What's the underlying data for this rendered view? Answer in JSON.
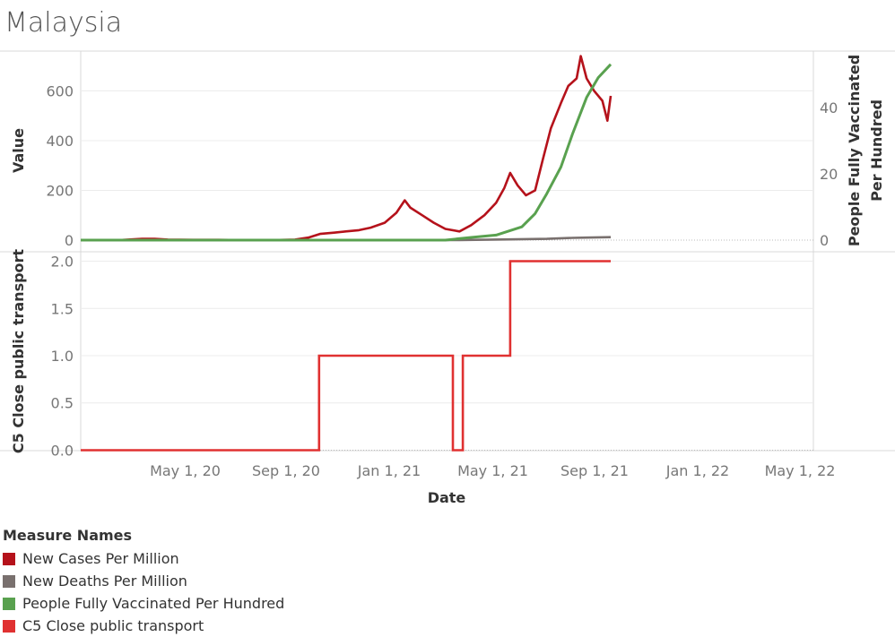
{
  "title": "Malaysia",
  "chart_data": {
    "type": "line",
    "x_tick_labels": [
      "May 1, 20",
      "Sep 1, 20",
      "Jan 1, 21",
      "May 1, 21",
      "Sep 1, 21",
      "Jan 1, 22",
      "May 1, 22"
    ],
    "x_axis_label": "Date",
    "x_range": [
      "2020-01-01",
      "2022-06-01"
    ],
    "top_panel": {
      "left_axis_label": "Value",
      "left_ylim": [
        0,
        760
      ],
      "left_ticks": [
        "0",
        "200",
        "400",
        "600"
      ],
      "right_axis_label_line1": "People Fully Vaccinated",
      "right_axis_label_line2": "Per Hundred",
      "right_ylim": [
        0,
        57
      ],
      "right_ticks": [
        "0",
        "20",
        "40"
      ],
      "series": [
        {
          "name": "New Cases Per Million",
          "axis": "left",
          "color": "#b5121b",
          "points": [
            [
              "2020-01-01",
              0
            ],
            [
              "2020-02-15",
              0
            ],
            [
              "2020-03-15",
              5
            ],
            [
              "2020-03-30",
              5
            ],
            [
              "2020-04-15",
              2
            ],
            [
              "2020-05-15",
              1
            ],
            [
              "2020-06-15",
              1
            ],
            [
              "2020-08-15",
              0
            ],
            [
              "2020-09-15",
              2
            ],
            [
              "2020-10-01",
              10
            ],
            [
              "2020-10-15",
              25
            ],
            [
              "2020-11-01",
              30
            ],
            [
              "2020-11-15",
              35
            ],
            [
              "2020-12-01",
              40
            ],
            [
              "2020-12-15",
              50
            ],
            [
              "2021-01-01",
              70
            ],
            [
              "2021-01-15",
              110
            ],
            [
              "2021-01-25",
              160
            ],
            [
              "2021-02-01",
              130
            ],
            [
              "2021-02-15",
              100
            ],
            [
              "2021-03-01",
              70
            ],
            [
              "2021-03-15",
              45
            ],
            [
              "2021-04-01",
              35
            ],
            [
              "2021-04-15",
              60
            ],
            [
              "2021-05-01",
              100
            ],
            [
              "2021-05-15",
              150
            ],
            [
              "2021-05-25",
              210
            ],
            [
              "2021-06-01",
              270
            ],
            [
              "2021-06-10",
              220
            ],
            [
              "2021-06-20",
              180
            ],
            [
              "2021-07-01",
              200
            ],
            [
              "2021-07-10",
              320
            ],
            [
              "2021-07-20",
              450
            ],
            [
              "2021-08-01",
              550
            ],
            [
              "2021-08-10",
              620
            ],
            [
              "2021-08-20",
              650
            ],
            [
              "2021-08-25",
              740
            ],
            [
              "2021-09-01",
              650
            ],
            [
              "2021-09-10",
              600
            ],
            [
              "2021-09-20",
              560
            ],
            [
              "2021-09-26",
              480
            ],
            [
              "2021-09-30",
              580
            ]
          ]
        },
        {
          "name": "New Deaths Per Million",
          "axis": "left",
          "color": "#79706e",
          "points": [
            [
              "2020-01-01",
              0
            ],
            [
              "2021-01-01",
              0.5
            ],
            [
              "2021-04-01",
              0.5
            ],
            [
              "2021-06-01",
              3
            ],
            [
              "2021-07-15",
              5
            ],
            [
              "2021-08-15",
              9
            ],
            [
              "2021-09-01",
              10
            ],
            [
              "2021-09-30",
              12
            ]
          ]
        },
        {
          "name": "People Fully Vaccinated Per Hundred",
          "axis": "right",
          "color": "#59a14f",
          "points": [
            [
              "2020-01-01",
              0
            ],
            [
              "2021-03-15",
              0
            ],
            [
              "2021-04-15",
              0.8
            ],
            [
              "2021-05-15",
              1.5
            ],
            [
              "2021-06-15",
              4
            ],
            [
              "2021-07-01",
              8
            ],
            [
              "2021-07-15",
              14
            ],
            [
              "2021-08-01",
              22
            ],
            [
              "2021-08-15",
              32
            ],
            [
              "2021-09-01",
              43
            ],
            [
              "2021-09-15",
              49
            ],
            [
              "2021-09-30",
              53
            ]
          ]
        }
      ]
    },
    "bottom_panel": {
      "left_axis_label": "C5 Close public transport",
      "ylim": [
        -0.1,
        2.1
      ],
      "ticks": [
        "0.0",
        "0.5",
        "1.0",
        "1.5",
        "2.0"
      ],
      "series": [
        {
          "name": "C5 Close public transport",
          "color": "#e03131",
          "step": true,
          "points": [
            [
              "2020-01-01",
              0
            ],
            [
              "2020-10-14",
              1
            ],
            [
              "2021-03-24",
              0
            ],
            [
              "2021-04-05",
              1
            ],
            [
              "2021-06-01",
              2
            ],
            [
              "2021-09-30",
              2
            ]
          ]
        }
      ]
    },
    "legend": {
      "title": "Measure Names",
      "items": [
        "New Cases Per Million",
        "New Deaths Per Million",
        "People Fully Vaccinated Per Hundred",
        "C5 Close public transport"
      ],
      "colors": [
        "#b5121b",
        "#79706e",
        "#59a14f",
        "#e03131"
      ]
    }
  }
}
